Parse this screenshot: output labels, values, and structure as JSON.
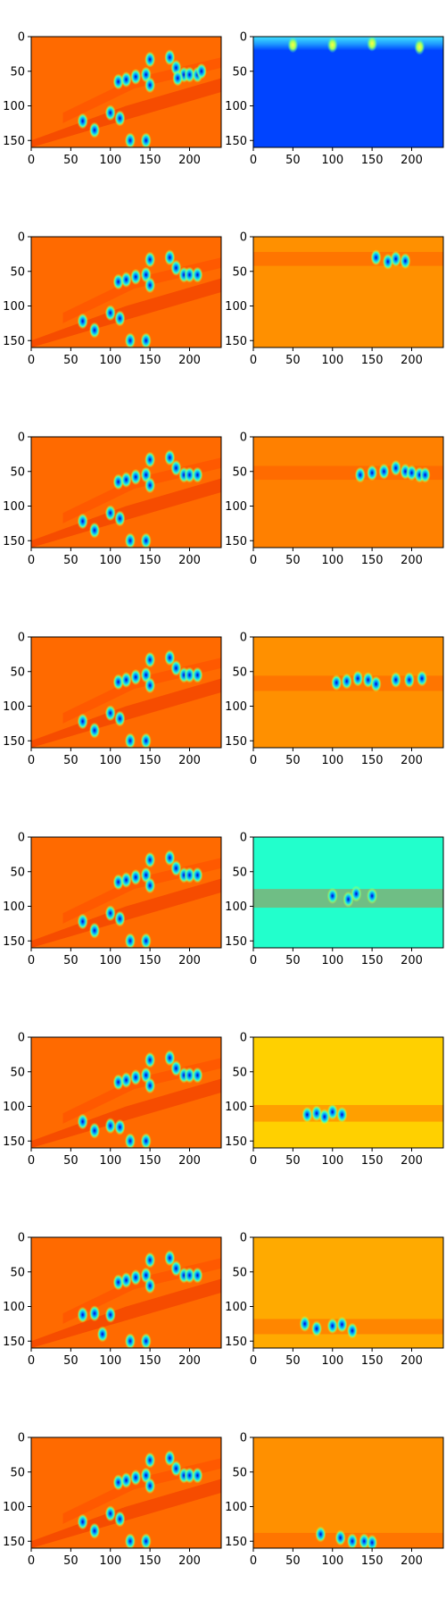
{
  "chart_data": [
    {
      "type": "heatmap",
      "row": 0,
      "col": 0,
      "variant": "left",
      "colormap": "jet",
      "bg": "#ff6a00",
      "band_y": [
        0,
        160
      ],
      "blobs": [
        [
          110,
          65
        ],
        [
          120,
          62
        ],
        [
          132,
          58
        ],
        [
          145,
          55
        ],
        [
          150,
          33
        ],
        [
          175,
          30
        ],
        [
          183,
          45
        ],
        [
          193,
          55
        ],
        [
          200,
          55
        ],
        [
          210,
          55
        ],
        [
          150,
          70
        ],
        [
          185,
          60
        ],
        [
          65,
          122
        ],
        [
          80,
          135
        ],
        [
          100,
          110
        ],
        [
          112,
          118
        ],
        [
          125,
          150
        ],
        [
          145,
          150
        ],
        [
          215,
          50
        ]
      ],
      "xlim": [
        0,
        240
      ],
      "ylim": [
        160,
        0
      ],
      "xticks": [
        "0",
        "50",
        "100",
        "150",
        "200"
      ],
      "yticks": [
        "0",
        "50",
        "100",
        "150"
      ]
    },
    {
      "type": "heatmap",
      "row": 0,
      "col": 1,
      "variant": "top",
      "colormap": "jet",
      "bg": "#0044ff",
      "band_y": [
        0,
        20
      ],
      "blobs": [
        [
          210,
          15
        ],
        [
          100,
          12
        ],
        [
          150,
          10
        ],
        [
          50,
          12
        ]
      ],
      "xlim": [
        0,
        240
      ],
      "ylim": [
        160,
        0
      ],
      "xticks": [
        "0",
        "50",
        "100",
        "150",
        "200"
      ],
      "yticks": [
        "0",
        "50",
        "100",
        "150"
      ]
    },
    {
      "type": "heatmap",
      "row": 1,
      "col": 0,
      "variant": "left",
      "colormap": "jet",
      "bg": "#ff6a00",
      "band_y": [
        0,
        160
      ],
      "blobs": [
        [
          110,
          65
        ],
        [
          120,
          62
        ],
        [
          132,
          58
        ],
        [
          145,
          55
        ],
        [
          150,
          33
        ],
        [
          175,
          30
        ],
        [
          183,
          45
        ],
        [
          193,
          55
        ],
        [
          200,
          55
        ],
        [
          210,
          55
        ],
        [
          150,
          70
        ],
        [
          65,
          122
        ],
        [
          80,
          135
        ],
        [
          100,
          110
        ],
        [
          112,
          118
        ],
        [
          125,
          150
        ],
        [
          145,
          150
        ]
      ],
      "xlim": [
        0,
        240
      ],
      "ylim": [
        160,
        0
      ],
      "xticks": [
        "0",
        "50",
        "100",
        "150",
        "200"
      ],
      "yticks": [
        "0",
        "50",
        "100",
        "150"
      ]
    },
    {
      "type": "heatmap",
      "row": 1,
      "col": 1,
      "variant": "band",
      "colormap": "jet",
      "bg": "#ff9000",
      "band_y": [
        22,
        42
      ],
      "blobs": [
        [
          155,
          30
        ],
        [
          180,
          32
        ],
        [
          192,
          35
        ],
        [
          170,
          36
        ]
      ],
      "xlim": [
        0,
        240
      ],
      "ylim": [
        160,
        0
      ],
      "xticks": [
        "0",
        "50",
        "100",
        "150",
        "200"
      ],
      "yticks": [
        "0",
        "50",
        "100",
        "150"
      ]
    },
    {
      "type": "heatmap",
      "row": 2,
      "col": 0,
      "variant": "left",
      "colormap": "jet",
      "bg": "#ff6a00",
      "band_y": [
        0,
        160
      ],
      "blobs": [
        [
          110,
          65
        ],
        [
          120,
          62
        ],
        [
          132,
          58
        ],
        [
          145,
          55
        ],
        [
          150,
          33
        ],
        [
          175,
          30
        ],
        [
          183,
          45
        ],
        [
          193,
          55
        ],
        [
          200,
          55
        ],
        [
          210,
          55
        ],
        [
          150,
          70
        ],
        [
          65,
          122
        ],
        [
          80,
          135
        ],
        [
          100,
          110
        ],
        [
          112,
          118
        ],
        [
          125,
          150
        ],
        [
          145,
          150
        ]
      ],
      "xlim": [
        0,
        240
      ],
      "ylim": [
        160,
        0
      ],
      "xticks": [
        "0",
        "50",
        "100",
        "150",
        "200"
      ],
      "yticks": [
        "0",
        "50",
        "100",
        "150"
      ]
    },
    {
      "type": "heatmap",
      "row": 2,
      "col": 1,
      "variant": "band",
      "colormap": "jet",
      "bg": "#ff8000",
      "band_y": [
        42,
        62
      ],
      "blobs": [
        [
          135,
          55
        ],
        [
          150,
          52
        ],
        [
          165,
          50
        ],
        [
          180,
          45
        ],
        [
          192,
          50
        ],
        [
          200,
          52
        ],
        [
          210,
          55
        ],
        [
          217,
          55
        ]
      ],
      "xlim": [
        0,
        240
      ],
      "ylim": [
        160,
        0
      ],
      "xticks": [
        "0",
        "50",
        "100",
        "150",
        "200"
      ],
      "yticks": [
        "0",
        "50",
        "100",
        "150"
      ]
    },
    {
      "type": "heatmap",
      "row": 3,
      "col": 0,
      "variant": "left",
      "colormap": "jet",
      "bg": "#ff6a00",
      "band_y": [
        0,
        160
      ],
      "blobs": [
        [
          110,
          65
        ],
        [
          120,
          62
        ],
        [
          132,
          58
        ],
        [
          145,
          55
        ],
        [
          150,
          33
        ],
        [
          175,
          30
        ],
        [
          183,
          45
        ],
        [
          193,
          55
        ],
        [
          200,
          55
        ],
        [
          210,
          55
        ],
        [
          150,
          70
        ],
        [
          65,
          122
        ],
        [
          80,
          135
        ],
        [
          100,
          110
        ],
        [
          112,
          118
        ],
        [
          125,
          150
        ],
        [
          145,
          150
        ]
      ],
      "xlim": [
        0,
        240
      ],
      "ylim": [
        160,
        0
      ],
      "xticks": [
        "0",
        "50",
        "100",
        "150",
        "200"
      ],
      "yticks": [
        "0",
        "50",
        "100",
        "150"
      ]
    },
    {
      "type": "heatmap",
      "row": 3,
      "col": 1,
      "variant": "band",
      "colormap": "jet",
      "bg": "#ff9000",
      "band_y": [
        56,
        78
      ],
      "blobs": [
        [
          105,
          66
        ],
        [
          118,
          64
        ],
        [
          132,
          60
        ],
        [
          145,
          62
        ],
        [
          155,
          68
        ],
        [
          180,
          62
        ],
        [
          197,
          62
        ],
        [
          213,
          60
        ]
      ],
      "xlim": [
        0,
        240
      ],
      "ylim": [
        160,
        0
      ],
      "xticks": [
        "0",
        "50",
        "100",
        "150",
        "200"
      ],
      "yticks": [
        "0",
        "50",
        "100",
        "150"
      ]
    },
    {
      "type": "heatmap",
      "row": 4,
      "col": 0,
      "variant": "left",
      "colormap": "jet",
      "bg": "#ff6a00",
      "band_y": [
        0,
        160
      ],
      "blobs": [
        [
          110,
          65
        ],
        [
          120,
          62
        ],
        [
          132,
          58
        ],
        [
          145,
          55
        ],
        [
          150,
          33
        ],
        [
          175,
          30
        ],
        [
          183,
          45
        ],
        [
          193,
          55
        ],
        [
          200,
          55
        ],
        [
          210,
          55
        ],
        [
          150,
          70
        ],
        [
          65,
          122
        ],
        [
          80,
          135
        ],
        [
          100,
          110
        ],
        [
          112,
          118
        ],
        [
          125,
          150
        ],
        [
          145,
          150
        ]
      ],
      "xlim": [
        0,
        240
      ],
      "ylim": [
        160,
        0
      ],
      "xticks": [
        "0",
        "50",
        "100",
        "150",
        "200"
      ],
      "yticks": [
        "0",
        "50",
        "100",
        "150"
      ]
    },
    {
      "type": "heatmap",
      "row": 4,
      "col": 1,
      "variant": "band",
      "colormap": "jet",
      "bg": "#22ffcc",
      "band_y": [
        75,
        102
      ],
      "blobs": [
        [
          100,
          85
        ],
        [
          130,
          82
        ],
        [
          150,
          85
        ],
        [
          120,
          90
        ]
      ],
      "xlim": [
        0,
        240
      ],
      "ylim": [
        160,
        0
      ],
      "xticks": [
        "0",
        "50",
        "100",
        "150",
        "200"
      ],
      "yticks": [
        "0",
        "50",
        "100",
        "150"
      ]
    },
    {
      "type": "heatmap",
      "row": 5,
      "col": 0,
      "variant": "left",
      "colormap": "jet",
      "bg": "#ff6a00",
      "band_y": [
        0,
        160
      ],
      "blobs": [
        [
          110,
          65
        ],
        [
          120,
          62
        ],
        [
          132,
          58
        ],
        [
          145,
          55
        ],
        [
          150,
          33
        ],
        [
          175,
          30
        ],
        [
          183,
          45
        ],
        [
          193,
          55
        ],
        [
          200,
          55
        ],
        [
          210,
          55
        ],
        [
          150,
          70
        ],
        [
          65,
          122
        ],
        [
          80,
          135
        ],
        [
          100,
          128
        ],
        [
          112,
          130
        ],
        [
          125,
          150
        ],
        [
          145,
          150
        ]
      ],
      "xlim": [
        0,
        240
      ],
      "ylim": [
        160,
        0
      ],
      "xticks": [
        "0",
        "50",
        "100",
        "150",
        "200"
      ],
      "yticks": [
        "0",
        "50",
        "100",
        "150"
      ]
    },
    {
      "type": "heatmap",
      "row": 5,
      "col": 1,
      "variant": "band",
      "colormap": "jet",
      "bg": "#ffd000",
      "band_y": [
        98,
        122
      ],
      "blobs": [
        [
          68,
          112
        ],
        [
          80,
          110
        ],
        [
          100,
          108
        ],
        [
          112,
          112
        ],
        [
          90,
          115
        ]
      ],
      "xlim": [
        0,
        240
      ],
      "ylim": [
        160,
        0
      ],
      "xticks": [
        "0",
        "50",
        "100",
        "150",
        "200"
      ],
      "yticks": [
        "0",
        "50",
        "100",
        "150"
      ]
    },
    {
      "type": "heatmap",
      "row": 6,
      "col": 0,
      "variant": "left",
      "colormap": "jet",
      "bg": "#ff6a00",
      "band_y": [
        0,
        160
      ],
      "blobs": [
        [
          110,
          65
        ],
        [
          120,
          62
        ],
        [
          132,
          58
        ],
        [
          145,
          55
        ],
        [
          150,
          33
        ],
        [
          175,
          30
        ],
        [
          183,
          45
        ],
        [
          193,
          55
        ],
        [
          200,
          55
        ],
        [
          210,
          55
        ],
        [
          150,
          70
        ],
        [
          65,
          112
        ],
        [
          80,
          110
        ],
        [
          100,
          112
        ],
        [
          90,
          140
        ],
        [
          125,
          150
        ],
        [
          145,
          150
        ]
      ],
      "xlim": [
        0,
        240
      ],
      "ylim": [
        160,
        0
      ],
      "xticks": [
        "0",
        "50",
        "100",
        "150",
        "200"
      ],
      "yticks": [
        "0",
        "50",
        "100",
        "150"
      ]
    },
    {
      "type": "heatmap",
      "row": 6,
      "col": 1,
      "variant": "band",
      "colormap": "jet",
      "bg": "#ffaa00",
      "band_y": [
        118,
        140
      ],
      "blobs": [
        [
          65,
          125
        ],
        [
          80,
          132
        ],
        [
          100,
          128
        ],
        [
          112,
          126
        ],
        [
          125,
          135
        ]
      ],
      "xlim": [
        0,
        240
      ],
      "ylim": [
        160,
        0
      ],
      "xticks": [
        "0",
        "50",
        "100",
        "150",
        "200"
      ],
      "yticks": [
        "0",
        "50",
        "100",
        "150"
      ]
    },
    {
      "type": "heatmap",
      "row": 7,
      "col": 0,
      "variant": "left",
      "colormap": "jet",
      "bg": "#ff6a00",
      "band_y": [
        0,
        160
      ],
      "blobs": [
        [
          110,
          65
        ],
        [
          120,
          62
        ],
        [
          132,
          58
        ],
        [
          145,
          55
        ],
        [
          150,
          33
        ],
        [
          175,
          30
        ],
        [
          183,
          45
        ],
        [
          193,
          55
        ],
        [
          200,
          55
        ],
        [
          210,
          55
        ],
        [
          150,
          70
        ],
        [
          65,
          122
        ],
        [
          80,
          135
        ],
        [
          100,
          110
        ],
        [
          112,
          118
        ],
        [
          125,
          150
        ],
        [
          145,
          150
        ]
      ],
      "xlim": [
        0,
        240
      ],
      "ylim": [
        160,
        0
      ],
      "xticks": [
        "0",
        "50",
        "100",
        "150",
        "200"
      ],
      "yticks": [
        "0",
        "50",
        "100",
        "150"
      ]
    },
    {
      "type": "heatmap",
      "row": 7,
      "col": 1,
      "variant": "band",
      "colormap": "jet",
      "bg": "#ff9000",
      "band_y": [
        138,
        160
      ],
      "blobs": [
        [
          85,
          140
        ],
        [
          110,
          145
        ],
        [
          125,
          150
        ],
        [
          140,
          150
        ],
        [
          150,
          152
        ]
      ],
      "xlim": [
        0,
        240
      ],
      "ylim": [
        160,
        0
      ],
      "xticks": [
        "0",
        "50",
        "100",
        "150",
        "200"
      ],
      "yticks": [
        "0",
        "50",
        "100",
        "150"
      ]
    }
  ]
}
